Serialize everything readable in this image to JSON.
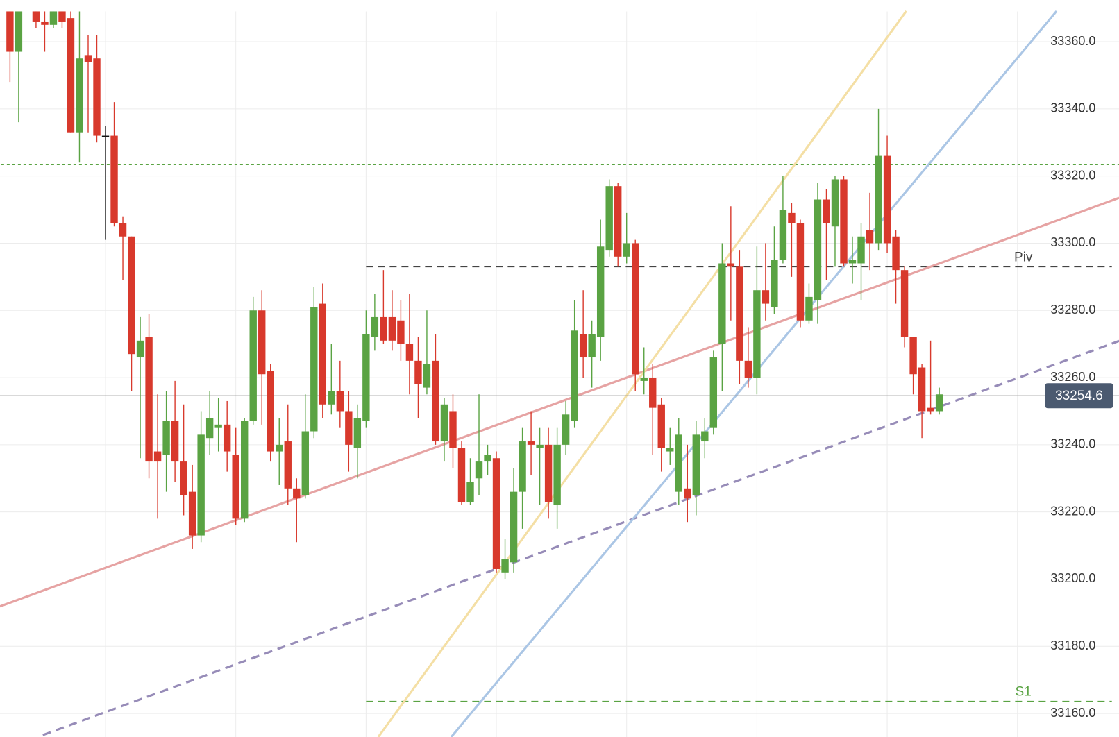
{
  "chart_data": {
    "type": "candlestick",
    "up_color": "#5aa343",
    "down_color": "#d8392c",
    "flat_color": "#111111",
    "open": [
      33369,
      33357,
      null,
      33369,
      33366,
      33365,
      33369,
      33367,
      33333,
      33356,
      33355,
      33332,
      33332,
      33306,
      33302,
      33266,
      33272,
      33238,
      33237,
      33247,
      33235,
      33226,
      33213,
      33242,
      33245,
      33246,
      33237,
      33218,
      33247,
      33280,
      33262,
      33238,
      33241,
      33227,
      33225,
      33244,
      33282,
      33252,
      33256,
      33250,
      33239,
      33247,
      33272,
      33278,
      33278,
      33277,
      33270,
      33265,
      33257,
      33265,
      33241,
      33250,
      33239,
      33223,
      33230,
      33235,
      33236,
      33202,
      33205,
      33226,
      33241,
      33239,
      33240,
      33222,
      33240,
      33247,
      33273,
      33266,
      33272,
      33298,
      33317,
      33296,
      33300,
      33259,
      33260,
      33252,
      33238,
      33226,
      33227,
      33225,
      33241,
      33245,
      33270,
      33294,
      33293,
      33265,
      33260,
      33286,
      33281,
      33295,
      33309,
      33306,
      33277,
      33283,
      33313,
      33305,
      33319,
      33294,
      33294,
      33304,
      33300,
      33326,
      33302,
      33292,
      33272,
      33263,
      33251,
      33250
    ],
    "high": [
      33369,
      33369,
      null,
      33369,
      33369,
      33369,
      33369,
      33369,
      33369,
      33362,
      33362,
      33335,
      33342,
      33308,
      33302,
      33278,
      33279,
      33255,
      33256,
      33259,
      33252,
      33234,
      33250,
      33256,
      33254,
      33253,
      33245,
      33248,
      33284,
      33286,
      33264,
      33248,
      33252,
      33230,
      33255,
      33287,
      33288,
      33270,
      33265,
      33256,
      33252,
      33280,
      33285,
      33292,
      33286,
      33283,
      33285,
      33272,
      33280,
      33273,
      33254,
      33255,
      33241,
      33236,
      33255,
      33240,
      33238,
      33212,
      33233,
      33245,
      33250,
      33245,
      33245,
      33245,
      33253,
      33283,
      33286,
      33277,
      33307,
      33319,
      33318,
      33309,
      33301,
      33269,
      33264,
      33254,
      33245,
      33248,
      33240,
      33247,
      33248,
      33268,
      33300,
      33311,
      33298,
      33275,
      33299,
      33300,
      33305,
      33320,
      33312,
      33307,
      33288,
      33318,
      33316,
      33320,
      33320,
      33302,
      33306,
      33315,
      33340,
      33332,
      33304,
      33293,
      33272,
      33264,
      33271,
      33257
    ],
    "low": [
      33348,
      33336,
      null,
      33364,
      33357,
      33364,
      33364,
      33333,
      33324,
      33333,
      33330,
      33301,
      33305,
      33289,
      33256,
      33236,
      33230,
      33218,
      33226,
      33229,
      33219,
      33209,
      33211,
      33237,
      33238,
      33232,
      33216,
      33217,
      33246,
      33246,
      33235,
      33228,
      33222,
      33211,
      33224,
      33242,
      33248,
      33249,
      33245,
      33232,
      33230,
      33245,
      33268,
      33270,
      33268,
      33265,
      33255,
      33248,
      33255,
      33240,
      33235,
      33233,
      33222,
      33222,
      33225,
      33231,
      33202,
      33200,
      33202,
      33215,
      33231,
      33222,
      33218,
      33215,
      33237,
      33245,
      33260,
      33257,
      33265,
      33296,
      33293,
      33294,
      33256,
      33255,
      33237,
      33232,
      33234,
      33222,
      33217,
      33219,
      33236,
      33243,
      33256,
      33277,
      33258,
      33257,
      33255,
      33277,
      33279,
      33294,
      33290,
      33275,
      33276,
      33276,
      33289,
      33293,
      33293,
      33288,
      33283,
      33292,
      33298,
      33297,
      33282,
      33269,
      33255,
      33242,
      33249,
      33249
    ],
    "close": [
      33357,
      33369,
      null,
      33366,
      33365,
      33369,
      33366,
      33333,
      33355,
      33354,
      33332,
      33332,
      33306,
      33302,
      33267,
      33271,
      33235,
      33235,
      33247,
      33235,
      33225,
      33213,
      33243,
      33248,
      33246,
      33238,
      33218,
      33247,
      33280,
      33261,
      33238,
      33240,
      33227,
      33224,
      33244,
      33281,
      33252,
      33256,
      33250,
      33240,
      33248,
      33273,
      33278,
      33271,
      33271,
      33270,
      33265,
      33258,
      33264,
      33241,
      33252,
      33239,
      33223,
      33229,
      33235,
      33237,
      33203,
      33206,
      33226,
      33241,
      33240,
      33240,
      33223,
      33240,
      33249,
      33274,
      33266,
      33273,
      33299,
      33317,
      33296,
      33300,
      33261,
      33260,
      33251,
      33239,
      33239,
      33243,
      33224,
      33243,
      33244,
      33266,
      33294,
      33293,
      33265,
      33260,
      33286,
      33282,
      33295,
      33310,
      33306,
      33277,
      33284,
      33313,
      33306,
      33319,
      33294,
      33295,
      33302,
      33300,
      33326,
      33300,
      33292,
      33272,
      33261,
      33250,
      33250,
      33255
    ],
    "ylim": [
      33153,
      33369
    ],
    "yticks": [
      {
        "value": 33160,
        "label": "33160.0"
      },
      {
        "value": 33180,
        "label": "33180.0"
      },
      {
        "value": 33200,
        "label": "33200.0"
      },
      {
        "value": 33220,
        "label": "33220.0"
      },
      {
        "value": 33240,
        "label": "33240.0"
      },
      {
        "value": 33260,
        "label": "33260.0"
      },
      {
        "value": 33280,
        "label": "33280.0"
      },
      {
        "value": 33300,
        "label": "33300.0"
      },
      {
        "value": 33320,
        "label": "33320.0"
      },
      {
        "value": 33340,
        "label": "33340.0"
      },
      {
        "value": 33360,
        "label": "33360.0"
      }
    ],
    "grid": true,
    "levels": [
      {
        "label": "Piv",
        "value": 33293,
        "start": 41,
        "color": "#444444",
        "style": "dashed"
      },
      {
        "label": "S1",
        "value": 33163.6,
        "start": 41,
        "color": "#5aa343",
        "style": "dashed"
      },
      {
        "value": 33323.4,
        "start": -1,
        "color": "#5aa343",
        "style": "dotted"
      }
    ],
    "trendlines": [
      {
        "x": [
          -1.15,
          127.7
        ],
        "y": [
          33191.9,
          33313.5
        ],
        "color": "#e6a3a3",
        "style": "solid"
      },
      {
        "x": [
          3.78,
          127.7
        ],
        "y": [
          33153.6,
          33270.9
        ],
        "color": "#978cb8",
        "style": "dashed"
      },
      {
        "x": [
          42.4,
          103.2
        ],
        "y": [
          33153,
          33369.1
        ],
        "color": "#f4dfa5",
        "style": "solid"
      },
      {
        "x": [
          50.8,
          120.5
        ],
        "y": [
          33153,
          33369.1
        ],
        "color": "#abc6e5",
        "style": "solid"
      }
    ],
    "last_price": 33254.6,
    "last_price_color": "#4b5a70"
  }
}
